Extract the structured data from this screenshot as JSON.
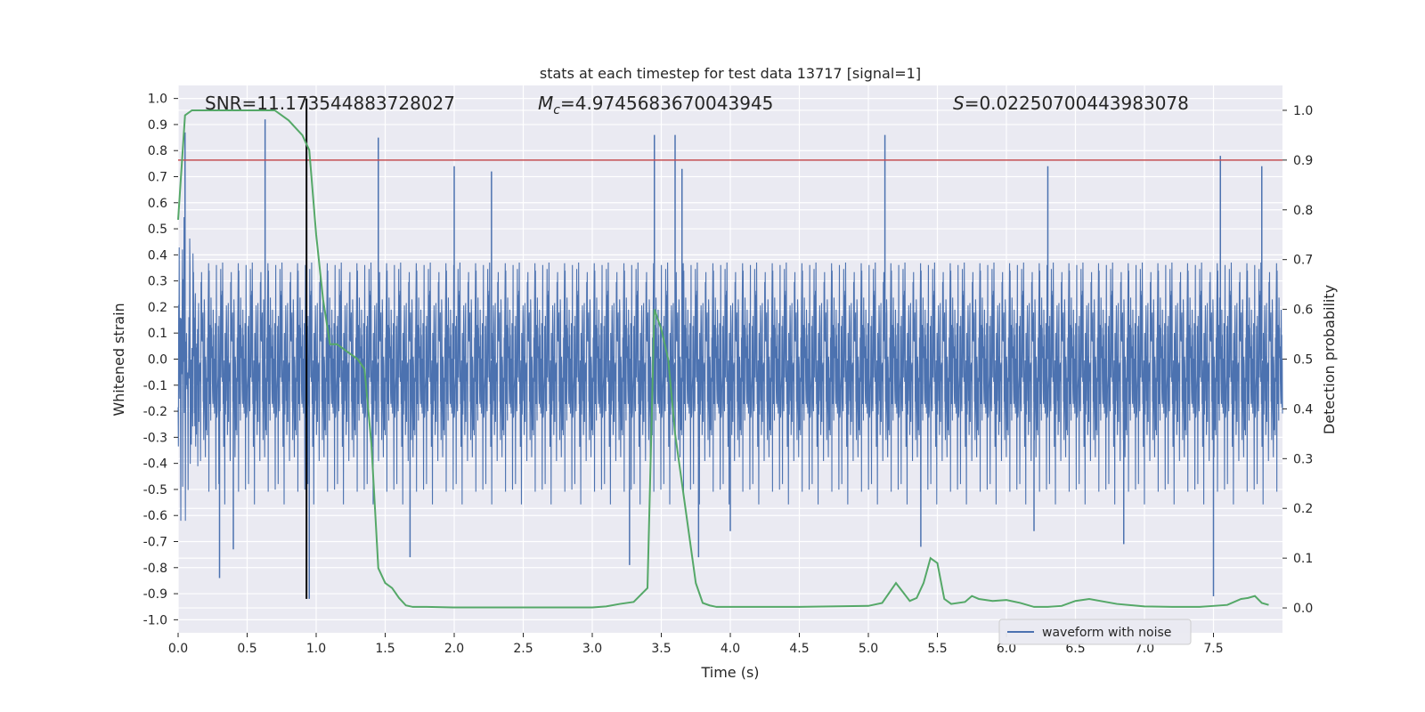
{
  "chart_data": {
    "type": "line",
    "title": "stats at each timestep for test data 13717 [signal=1]",
    "xlabel": "Time (s)",
    "ylabel_left": "Whitened strain",
    "ylabel_right": "Detection probability",
    "xlim": [
      0,
      8
    ],
    "ylim_left": [
      -1.05,
      1.05
    ],
    "ylim_right": [
      -0.05,
      1.05
    ],
    "x_ticks": [
      "0.0",
      "0.5",
      "1.0",
      "1.5",
      "2.0",
      "2.5",
      "3.0",
      "3.5",
      "4.0",
      "4.5",
      "5.0",
      "5.5",
      "6.0",
      "6.5",
      "7.0",
      "7.5"
    ],
    "y_ticks_left": [
      "-1.0",
      "-0.9",
      "-0.8",
      "-0.7",
      "-0.6",
      "-0.5",
      "-0.4",
      "-0.3",
      "-0.2",
      "-0.1",
      "0.0",
      "0.1",
      "0.2",
      "0.3",
      "0.4",
      "0.5",
      "0.6",
      "0.7",
      "0.8",
      "0.9",
      "1.0"
    ],
    "y_ticks_right": [
      "0.0",
      "0.1",
      "0.2",
      "0.3",
      "0.4",
      "0.5",
      "0.6",
      "0.7",
      "0.8",
      "0.9",
      "1.0"
    ],
    "grid": true,
    "legend_position": "lower-right",
    "annotations": {
      "snr": "SNR=11.173544883728027",
      "mc_symbol": "M",
      "mc_sub": "c",
      "mc_value": "=4.9745683670043945",
      "s_symbol": "S",
      "s_value": "=0.02250700443983078"
    },
    "colors": {
      "waveform": "#4c72b0",
      "probability": "#55a868",
      "threshold": "#c44e52",
      "marker": "#000000",
      "plot_bg": "#eaeaf2",
      "grid": "#ffffff"
    },
    "threshold_probability": 0.9,
    "marker_time": 0.93,
    "series": [
      {
        "name": "waveform with noise",
        "kind": "noise",
        "axis": "left",
        "note_points": 4096,
        "x_range": [
          0,
          8
        ],
        "typical_envelope": [
          -0.45,
          0.45
        ],
        "spike_extremes": [
          {
            "x": 0.05,
            "y": 0.87
          },
          {
            "x": 0.3,
            "y": -0.84
          },
          {
            "x": 0.63,
            "y": 0.92
          },
          {
            "x": 0.4,
            "y": -0.73
          },
          {
            "x": 1.45,
            "y": 0.85
          },
          {
            "x": 1.68,
            "y": -0.76
          },
          {
            "x": 3.27,
            "y": -0.79
          },
          {
            "x": 3.45,
            "y": 0.86
          },
          {
            "x": 3.6,
            "y": 0.86
          },
          {
            "x": 3.65,
            "y": 0.73
          },
          {
            "x": 3.77,
            "y": -0.76
          },
          {
            "x": 5.12,
            "y": 0.86
          },
          {
            "x": 7.5,
            "y": -0.91
          },
          {
            "x": 7.55,
            "y": 0.78
          },
          {
            "x": 7.85,
            "y": 0.74
          },
          {
            "x": 2.0,
            "y": 0.74
          },
          {
            "x": 2.27,
            "y": 0.72
          },
          {
            "x": 4.0,
            "y": -0.66
          },
          {
            "x": 5.38,
            "y": -0.72
          },
          {
            "x": 6.2,
            "y": -0.66
          },
          {
            "x": 6.85,
            "y": -0.71
          },
          {
            "x": 6.3,
            "y": 0.74
          },
          {
            "x": 0.95,
            "y": -0.92
          }
        ]
      },
      {
        "name": "",
        "axis": "right",
        "x": [
          0,
          0.05,
          0.1,
          0.2,
          0.3,
          0.4,
          0.5,
          0.6,
          0.7,
          0.8,
          0.9,
          0.95,
          1.0,
          1.05,
          1.1,
          1.15,
          1.2,
          1.25,
          1.3,
          1.35,
          1.4,
          1.45,
          1.5,
          1.55,
          1.6,
          1.65,
          1.7,
          1.8,
          2.0,
          2.5,
          3.0,
          3.1,
          3.2,
          3.3,
          3.4,
          3.45,
          3.5,
          3.55,
          3.6,
          3.65,
          3.7,
          3.75,
          3.8,
          3.85,
          3.9,
          4.0,
          4.5,
          5.0,
          5.1,
          5.15,
          5.2,
          5.3,
          5.35,
          5.4,
          5.45,
          5.5,
          5.55,
          5.6,
          5.7,
          5.75,
          5.8,
          5.9,
          6.0,
          6.1,
          6.2,
          6.3,
          6.4,
          6.5,
          6.6,
          6.8,
          7.0,
          7.2,
          7.4,
          7.5,
          7.6,
          7.7,
          7.75,
          7.8,
          7.85,
          7.9
        ],
        "values": [
          0.78,
          0.99,
          1.0,
          1.0,
          1.0,
          1.0,
          1.0,
          1.0,
          1.0,
          0.98,
          0.95,
          0.92,
          0.75,
          0.62,
          0.53,
          0.53,
          0.52,
          0.51,
          0.5,
          0.48,
          0.33,
          0.08,
          0.05,
          0.04,
          0.02,
          0.005,
          0.002,
          0.002,
          0.001,
          0.001,
          0.001,
          0.003,
          0.008,
          0.012,
          0.04,
          0.6,
          0.56,
          0.5,
          0.35,
          0.25,
          0.15,
          0.05,
          0.01,
          0.005,
          0.002,
          0.002,
          0.002,
          0.004,
          0.01,
          0.03,
          0.05,
          0.014,
          0.02,
          0.05,
          0.1,
          0.09,
          0.018,
          0.008,
          0.012,
          0.024,
          0.018,
          0.014,
          0.016,
          0.01,
          0.002,
          0.002,
          0.004,
          0.014,
          0.018,
          0.008,
          0.003,
          0.002,
          0.002,
          0.004,
          0.006,
          0.018,
          0.02,
          0.024,
          0.01,
          0.006
        ]
      }
    ]
  }
}
